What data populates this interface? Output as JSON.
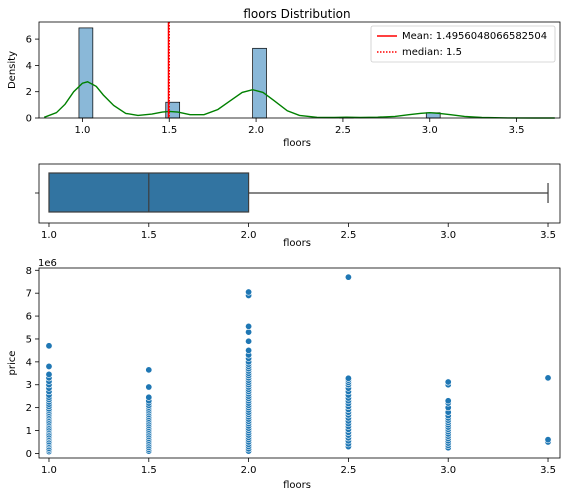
{
  "chart_data": [
    {
      "type": "bar",
      "subtype": "histogram-with-kde",
      "title": "floors Distribution",
      "xlabel": "floors",
      "ylabel": "Density",
      "xlim": [
        0.75,
        3.75
      ],
      "ylim": [
        0,
        7.3
      ],
      "xticks": [
        "1.0",
        "1.5",
        "2.0",
        "2.5",
        "3.0",
        "3.5"
      ],
      "yticks": [
        "0",
        "2",
        "4",
        "6"
      ],
      "bars": [
        {
          "x0": 0.98,
          "x1": 1.06,
          "value": 6.85
        },
        {
          "x0": 1.48,
          "x1": 1.56,
          "value": 1.2
        },
        {
          "x0": 1.98,
          "x1": 2.06,
          "value": 5.3
        },
        {
          "x0": 2.48,
          "x1": 2.56,
          "value": 0.05
        },
        {
          "x0": 2.98,
          "x1": 3.06,
          "value": 0.4
        },
        {
          "x0": 3.48,
          "x1": 3.56,
          "value": 0.01
        }
      ],
      "kde": {
        "x": [
          0.78,
          0.85,
          0.9,
          0.95,
          1.0,
          1.03,
          1.08,
          1.12,
          1.18,
          1.25,
          1.32,
          1.4,
          1.46,
          1.5,
          1.55,
          1.62,
          1.7,
          1.78,
          1.85,
          1.92,
          1.98,
          2.04,
          2.1,
          2.18,
          2.25,
          2.35,
          2.45,
          2.52,
          2.6,
          2.7,
          2.8,
          2.88,
          2.95,
          3.0,
          3.05,
          3.12,
          3.2,
          3.3,
          3.45,
          3.6,
          3.72
        ],
        "y": [
          0.05,
          0.4,
          1.05,
          2.0,
          2.65,
          2.75,
          2.4,
          1.75,
          0.95,
          0.35,
          0.2,
          0.3,
          0.45,
          0.5,
          0.45,
          0.25,
          0.25,
          0.65,
          1.3,
          1.95,
          2.15,
          1.95,
          1.35,
          0.55,
          0.2,
          0.05,
          0.04,
          0.06,
          0.04,
          0.06,
          0.12,
          0.25,
          0.36,
          0.4,
          0.36,
          0.25,
          0.12,
          0.04,
          0.01,
          0.0,
          0.0
        ]
      },
      "mean": 1.4956048066582504,
      "median": 1.5,
      "legend": {
        "placement": "top-right",
        "entries": [
          "Mean: 1.4956048066582504",
          "median: 1.5"
        ]
      },
      "colors": {
        "bar": "#8ab8d8",
        "kde": "#008000",
        "mean": "#ff0000",
        "median": "#ff0000"
      }
    },
    {
      "type": "boxplot",
      "xlabel": "floors",
      "xlim": [
        0.95,
        3.56
      ],
      "xticks": [
        "1.0",
        "1.5",
        "2.0",
        "2.5",
        "3.0",
        "3.5"
      ],
      "whisker_low": 1.0,
      "q1": 1.0,
      "median": 1.5,
      "q3": 2.0,
      "whisker_high": 3.5,
      "colors": {
        "box": "#3274a1"
      }
    },
    {
      "type": "scatter",
      "xlabel": "floors",
      "ylabel": "price",
      "offset_label": "1e6",
      "xlim": [
        0.95,
        3.56
      ],
      "ylim": [
        -0.2,
        8.1
      ],
      "xticks": [
        "1.0",
        "1.5",
        "2.0",
        "2.5",
        "3.0",
        "3.5"
      ],
      "yticks": [
        "0",
        "1",
        "2",
        "3",
        "4",
        "5",
        "6",
        "7",
        "8"
      ],
      "points": [
        {
          "x": 1.0,
          "y": [
            0.08,
            0.15,
            0.22,
            0.3,
            0.38,
            0.45,
            0.52,
            0.6,
            0.68,
            0.75,
            0.82,
            0.9,
            0.98,
            1.05,
            1.12,
            1.2,
            1.28,
            1.35,
            1.42,
            1.5,
            1.58,
            1.65,
            1.72,
            1.8,
            1.88,
            1.95,
            2.05,
            2.15,
            2.25,
            2.35,
            2.45,
            2.55,
            2.7,
            2.85,
            3.0,
            3.15,
            3.3,
            3.45,
            3.8,
            4.7
          ]
        },
        {
          "x": 1.5,
          "y": [
            0.1,
            0.18,
            0.26,
            0.34,
            0.42,
            0.5,
            0.58,
            0.66,
            0.74,
            0.82,
            0.9,
            0.98,
            1.06,
            1.14,
            1.22,
            1.3,
            1.38,
            1.46,
            1.54,
            1.62,
            1.7,
            1.78,
            1.86,
            1.94,
            2.02,
            2.1,
            2.2,
            2.3,
            2.45,
            2.9,
            3.65
          ]
        },
        {
          "x": 2.0,
          "y": [
            0.1,
            0.2,
            0.3,
            0.4,
            0.5,
            0.6,
            0.7,
            0.8,
            0.9,
            1.0,
            1.1,
            1.2,
            1.3,
            1.4,
            1.5,
            1.6,
            1.7,
            1.8,
            1.9,
            2.0,
            2.1,
            2.2,
            2.3,
            2.4,
            2.5,
            2.6,
            2.7,
            2.8,
            2.9,
            3.0,
            3.1,
            3.2,
            3.3,
            3.4,
            3.5,
            3.6,
            3.7,
            3.8,
            3.9,
            4.0,
            4.15,
            4.3,
            4.5,
            4.9,
            5.3,
            5.55,
            6.9,
            7.05
          ]
        },
        {
          "x": 2.5,
          "y": [
            0.3,
            0.42,
            0.55,
            0.68,
            0.8,
            0.92,
            1.05,
            1.18,
            1.3,
            1.42,
            1.55,
            1.68,
            1.8,
            1.92,
            2.05,
            2.18,
            2.3,
            2.42,
            2.55,
            2.7,
            2.85,
            3.0,
            3.1,
            3.2,
            3.28,
            7.7
          ]
        },
        {
          "x": 3.0,
          "y": [
            0.25,
            0.35,
            0.45,
            0.55,
            0.65,
            0.75,
            0.85,
            0.95,
            1.05,
            1.15,
            1.25,
            1.35,
            1.45,
            1.55,
            1.65,
            1.8,
            2.0,
            2.2,
            2.3,
            3.0,
            3.12
          ]
        },
        {
          "x": 3.5,
          "y": [
            0.5,
            0.6,
            3.3
          ]
        }
      ],
      "colors": {
        "point": "#1f77b4"
      }
    }
  ]
}
